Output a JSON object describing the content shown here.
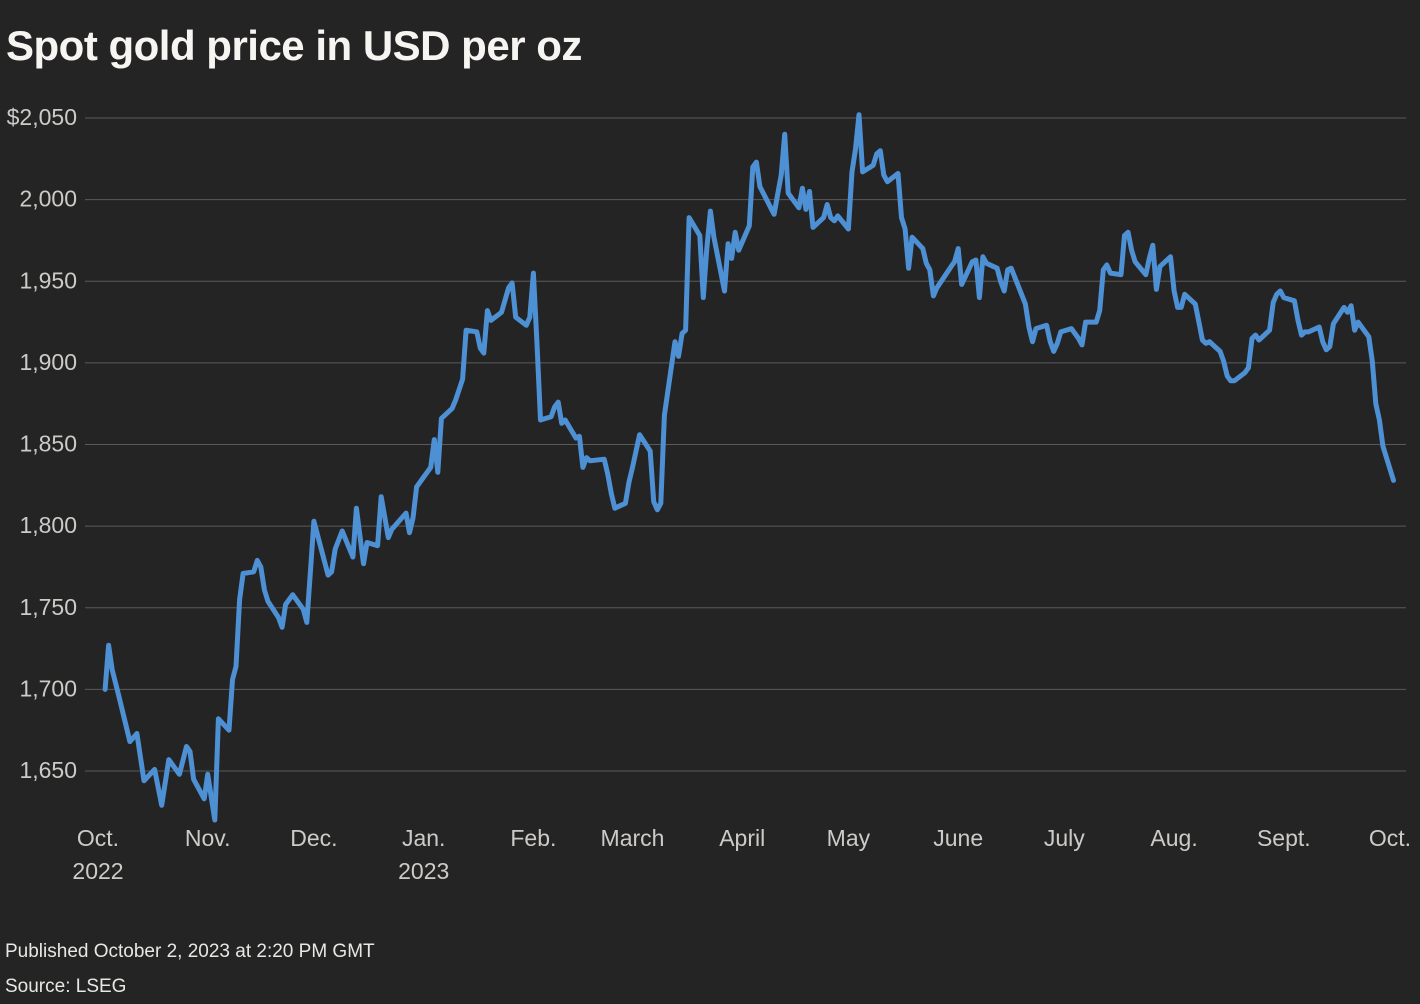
{
  "title": "Spot gold price in USD per oz",
  "footer": {
    "published": "Published October 2, 2023 at 2:20 PM GMT",
    "source": "Source: LSEG"
  },
  "colors": {
    "background": "#242424",
    "line": "#4e90d4",
    "grid": "#5a5a5a",
    "title_text": "#f7f5f1",
    "axis_text": "#cdcbc8",
    "footer_text": "#e9e7e4"
  },
  "chart_data": {
    "type": "line",
    "title": "Spot gold price in USD per oz",
    "ylabel": "USD per oz",
    "ylim": [
      1650,
      2050
    ],
    "x_range": [
      "2022-10-01",
      "2023-10-02"
    ],
    "grid": true,
    "legend": "none",
    "y_ticks": [
      {
        "label": "$2,050",
        "value": 2050
      },
      {
        "label": "2,000",
        "value": 2000
      },
      {
        "label": "1,950",
        "value": 1950
      },
      {
        "label": "1,900",
        "value": 1900
      },
      {
        "label": "1,850",
        "value": 1850
      },
      {
        "label": "1,800",
        "value": 1800
      },
      {
        "label": "1,750",
        "value": 1750
      },
      {
        "label": "1,700",
        "value": 1700
      },
      {
        "label": "1,650",
        "value": 1650
      }
    ],
    "x_ticks": [
      {
        "label": "Oct.",
        "sublabel": "2022",
        "date": "2022-10-01"
      },
      {
        "label": "Nov.",
        "sublabel": "",
        "date": "2022-11-01"
      },
      {
        "label": "Dec.",
        "sublabel": "",
        "date": "2022-12-01"
      },
      {
        "label": "Jan.",
        "sublabel": "2023",
        "date": "2023-01-01"
      },
      {
        "label": "Feb.",
        "sublabel": "",
        "date": "2023-02-01"
      },
      {
        "label": "March",
        "sublabel": "",
        "date": "2023-03-01"
      },
      {
        "label": "April",
        "sublabel": "",
        "date": "2023-04-01"
      },
      {
        "label": "May",
        "sublabel": "",
        "date": "2023-05-01"
      },
      {
        "label": "June",
        "sublabel": "",
        "date": "2023-06-01"
      },
      {
        "label": "July",
        "sublabel": "",
        "date": "2023-07-01"
      },
      {
        "label": "Aug.",
        "sublabel": "",
        "date": "2023-08-01"
      },
      {
        "label": "Sept.",
        "sublabel": "",
        "date": "2023-09-01"
      },
      {
        "label": "Oct.",
        "sublabel": "",
        "date": "2023-10-01"
      }
    ],
    "series": [
      {
        "name": "Spot gold price (USD per oz)",
        "points": [
          [
            "2022-10-03",
            1700
          ],
          [
            "2022-10-04",
            1727
          ],
          [
            "2022-10-05",
            1712
          ],
          [
            "2022-10-07",
            1695
          ],
          [
            "2022-10-10",
            1668
          ],
          [
            "2022-10-12",
            1673
          ],
          [
            "2022-10-14",
            1644
          ],
          [
            "2022-10-17",
            1651
          ],
          [
            "2022-10-19",
            1629
          ],
          [
            "2022-10-21",
            1657
          ],
          [
            "2022-10-24",
            1648
          ],
          [
            "2022-10-26",
            1665
          ],
          [
            "2022-10-27",
            1662
          ],
          [
            "2022-10-28",
            1645
          ],
          [
            "2022-10-31",
            1633
          ],
          [
            "2022-11-01",
            1648
          ],
          [
            "2022-11-03",
            1620
          ],
          [
            "2022-11-04",
            1682
          ],
          [
            "2022-11-07",
            1675
          ],
          [
            "2022-11-08",
            1706
          ],
          [
            "2022-11-09",
            1714
          ],
          [
            "2022-11-10",
            1755
          ],
          [
            "2022-11-11",
            1771
          ],
          [
            "2022-11-14",
            1772
          ],
          [
            "2022-11-15",
            1779
          ],
          [
            "2022-11-16",
            1775
          ],
          [
            "2022-11-17",
            1761
          ],
          [
            "2022-11-18",
            1754
          ],
          [
            "2022-11-21",
            1744
          ],
          [
            "2022-11-22",
            1738
          ],
          [
            "2022-11-23",
            1752
          ],
          [
            "2022-11-25",
            1758
          ],
          [
            "2022-11-28",
            1749
          ],
          [
            "2022-11-29",
            1741
          ],
          [
            "2022-11-30",
            1772
          ],
          [
            "2022-12-01",
            1803
          ],
          [
            "2022-12-05",
            1770
          ],
          [
            "2022-12-06",
            1772
          ],
          [
            "2022-12-07",
            1786
          ],
          [
            "2022-12-09",
            1797
          ],
          [
            "2022-12-12",
            1781
          ],
          [
            "2022-12-13",
            1811
          ],
          [
            "2022-12-15",
            1777
          ],
          [
            "2022-12-16",
            1790
          ],
          [
            "2022-12-19",
            1788
          ],
          [
            "2022-12-20",
            1818
          ],
          [
            "2022-12-22",
            1793
          ],
          [
            "2022-12-23",
            1798
          ],
          [
            "2022-12-27",
            1808
          ],
          [
            "2022-12-28",
            1796
          ],
          [
            "2022-12-29",
            1805
          ],
          [
            "2022-12-30",
            1824
          ],
          [
            "2023-01-03",
            1836
          ],
          [
            "2023-01-04",
            1853
          ],
          [
            "2023-01-05",
            1833
          ],
          [
            "2023-01-06",
            1866
          ],
          [
            "2023-01-09",
            1872
          ],
          [
            "2023-01-10",
            1877
          ],
          [
            "2023-01-12",
            1890
          ],
          [
            "2023-01-13",
            1920
          ],
          [
            "2023-01-16",
            1919
          ],
          [
            "2023-01-17",
            1909
          ],
          [
            "2023-01-18",
            1906
          ],
          [
            "2023-01-19",
            1932
          ],
          [
            "2023-01-20",
            1926
          ],
          [
            "2023-01-23",
            1931
          ],
          [
            "2023-01-25",
            1946
          ],
          [
            "2023-01-26",
            1949
          ],
          [
            "2023-01-27",
            1928
          ],
          [
            "2023-01-30",
            1923
          ],
          [
            "2023-01-31",
            1928
          ],
          [
            "2023-02-01",
            1955
          ],
          [
            "2023-02-02",
            1913
          ],
          [
            "2023-02-03",
            1865
          ],
          [
            "2023-02-06",
            1867
          ],
          [
            "2023-02-07",
            1873
          ],
          [
            "2023-02-08",
            1876
          ],
          [
            "2023-02-09",
            1863
          ],
          [
            "2023-02-10",
            1865
          ],
          [
            "2023-02-13",
            1854
          ],
          [
            "2023-02-14",
            1855
          ],
          [
            "2023-02-15",
            1836
          ],
          [
            "2023-02-16",
            1842
          ],
          [
            "2023-02-17",
            1840
          ],
          [
            "2023-02-21",
            1841
          ],
          [
            "2023-02-22",
            1832
          ],
          [
            "2023-02-23",
            1820
          ],
          [
            "2023-02-24",
            1811
          ],
          [
            "2023-02-27",
            1814
          ],
          [
            "2023-02-28",
            1827
          ],
          [
            "2023-03-01",
            1836
          ],
          [
            "2023-03-03",
            1856
          ],
          [
            "2023-03-06",
            1846
          ],
          [
            "2023-03-07",
            1815
          ],
          [
            "2023-03-08",
            1810
          ],
          [
            "2023-03-09",
            1814
          ],
          [
            "2023-03-10",
            1868
          ],
          [
            "2023-03-13",
            1913
          ],
          [
            "2023-03-14",
            1904
          ],
          [
            "2023-03-15",
            1918
          ],
          [
            "2023-03-16",
            1920
          ],
          [
            "2023-03-17",
            1989
          ],
          [
            "2023-03-20",
            1978
          ],
          [
            "2023-03-21",
            1940
          ],
          [
            "2023-03-22",
            1970
          ],
          [
            "2023-03-23",
            1993
          ],
          [
            "2023-03-24",
            1977
          ],
          [
            "2023-03-27",
            1944
          ],
          [
            "2023-03-28",
            1973
          ],
          [
            "2023-03-29",
            1964
          ],
          [
            "2023-03-30",
            1980
          ],
          [
            "2023-03-31",
            1969
          ],
          [
            "2023-04-03",
            1984
          ],
          [
            "2023-04-04",
            2020
          ],
          [
            "2023-04-05",
            2023
          ],
          [
            "2023-04-06",
            2008
          ],
          [
            "2023-04-10",
            1991
          ],
          [
            "2023-04-11",
            2003
          ],
          [
            "2023-04-12",
            2015
          ],
          [
            "2023-04-13",
            2040
          ],
          [
            "2023-04-14",
            2004
          ],
          [
            "2023-04-17",
            1995
          ],
          [
            "2023-04-18",
            2007
          ],
          [
            "2023-04-19",
            1994
          ],
          [
            "2023-04-20",
            2005
          ],
          [
            "2023-04-21",
            1983
          ],
          [
            "2023-04-24",
            1989
          ],
          [
            "2023-04-25",
            1997
          ],
          [
            "2023-04-26",
            1989
          ],
          [
            "2023-04-27",
            1987
          ],
          [
            "2023-04-28",
            1990
          ],
          [
            "2023-05-01",
            1982
          ],
          [
            "2023-05-02",
            2017
          ],
          [
            "2023-05-03",
            2031
          ],
          [
            "2023-05-04",
            2052
          ],
          [
            "2023-05-05",
            2017
          ],
          [
            "2023-05-08",
            2021
          ],
          [
            "2023-05-09",
            2028
          ],
          [
            "2023-05-10",
            2030
          ],
          [
            "2023-05-11",
            2015
          ],
          [
            "2023-05-12",
            2011
          ],
          [
            "2023-05-15",
            2016
          ],
          [
            "2023-05-16",
            1989
          ],
          [
            "2023-05-17",
            1982
          ],
          [
            "2023-05-18",
            1958
          ],
          [
            "2023-05-19",
            1977
          ],
          [
            "2023-05-22",
            1970
          ],
          [
            "2023-05-23",
            1961
          ],
          [
            "2023-05-24",
            1957
          ],
          [
            "2023-05-25",
            1941
          ],
          [
            "2023-05-26",
            1946
          ],
          [
            "2023-05-30",
            1959
          ],
          [
            "2023-05-31",
            1962
          ],
          [
            "2023-06-01",
            1970
          ],
          [
            "2023-06-02",
            1948
          ],
          [
            "2023-06-05",
            1962
          ],
          [
            "2023-06-06",
            1963
          ],
          [
            "2023-06-07",
            1940
          ],
          [
            "2023-06-08",
            1965
          ],
          [
            "2023-06-09",
            1961
          ],
          [
            "2023-06-12",
            1958
          ],
          [
            "2023-06-13",
            1950
          ],
          [
            "2023-06-14",
            1944
          ],
          [
            "2023-06-15",
            1957
          ],
          [
            "2023-06-16",
            1958
          ],
          [
            "2023-06-20",
            1936
          ],
          [
            "2023-06-21",
            1922
          ],
          [
            "2023-06-22",
            1913
          ],
          [
            "2023-06-23",
            1921
          ],
          [
            "2023-06-26",
            1923
          ],
          [
            "2023-06-27",
            1913
          ],
          [
            "2023-06-28",
            1907
          ],
          [
            "2023-06-29",
            1912
          ],
          [
            "2023-06-30",
            1919
          ],
          [
            "2023-07-03",
            1921
          ],
          [
            "2023-07-05",
            1915
          ],
          [
            "2023-07-06",
            1911
          ],
          [
            "2023-07-07",
            1925
          ],
          [
            "2023-07-10",
            1925
          ],
          [
            "2023-07-11",
            1932
          ],
          [
            "2023-07-12",
            1957
          ],
          [
            "2023-07-13",
            1960
          ],
          [
            "2023-07-14",
            1955
          ],
          [
            "2023-07-17",
            1954
          ],
          [
            "2023-07-18",
            1978
          ],
          [
            "2023-07-19",
            1980
          ],
          [
            "2023-07-20",
            1969
          ],
          [
            "2023-07-21",
            1962
          ],
          [
            "2023-07-24",
            1954
          ],
          [
            "2023-07-25",
            1964
          ],
          [
            "2023-07-26",
            1972
          ],
          [
            "2023-07-27",
            1945
          ],
          [
            "2023-07-28",
            1959
          ],
          [
            "2023-07-31",
            1965
          ],
          [
            "2023-08-01",
            1944
          ],
          [
            "2023-08-02",
            1934
          ],
          [
            "2023-08-03",
            1934
          ],
          [
            "2023-08-04",
            1942
          ],
          [
            "2023-08-07",
            1936
          ],
          [
            "2023-08-08",
            1925
          ],
          [
            "2023-08-09",
            1914
          ],
          [
            "2023-08-10",
            1912
          ],
          [
            "2023-08-11",
            1913
          ],
          [
            "2023-08-14",
            1907
          ],
          [
            "2023-08-15",
            1901
          ],
          [
            "2023-08-16",
            1892
          ],
          [
            "2023-08-17",
            1889
          ],
          [
            "2023-08-18",
            1889
          ],
          [
            "2023-08-21",
            1894
          ],
          [
            "2023-08-22",
            1897
          ],
          [
            "2023-08-23",
            1915
          ],
          [
            "2023-08-24",
            1917
          ],
          [
            "2023-08-25",
            1914
          ],
          [
            "2023-08-28",
            1920
          ],
          [
            "2023-08-29",
            1937
          ],
          [
            "2023-08-30",
            1942
          ],
          [
            "2023-08-31",
            1944
          ],
          [
            "2023-09-01",
            1940
          ],
          [
            "2023-09-04",
            1938
          ],
          [
            "2023-09-05",
            1926
          ],
          [
            "2023-09-06",
            1917
          ],
          [
            "2023-09-07",
            1919
          ],
          [
            "2023-09-08",
            1919
          ],
          [
            "2023-09-11",
            1922
          ],
          [
            "2023-09-12",
            1913
          ],
          [
            "2023-09-13",
            1908
          ],
          [
            "2023-09-14",
            1910
          ],
          [
            "2023-09-15",
            1924
          ],
          [
            "2023-09-18",
            1934
          ],
          [
            "2023-09-19",
            1931
          ],
          [
            "2023-09-20",
            1935
          ],
          [
            "2023-09-21",
            1920
          ],
          [
            "2023-09-22",
            1925
          ],
          [
            "2023-09-25",
            1916
          ],
          [
            "2023-09-26",
            1901
          ],
          [
            "2023-09-27",
            1875
          ],
          [
            "2023-09-28",
            1865
          ],
          [
            "2023-09-29",
            1849
          ],
          [
            "2023-10-02",
            1828
          ]
        ]
      }
    ]
  }
}
